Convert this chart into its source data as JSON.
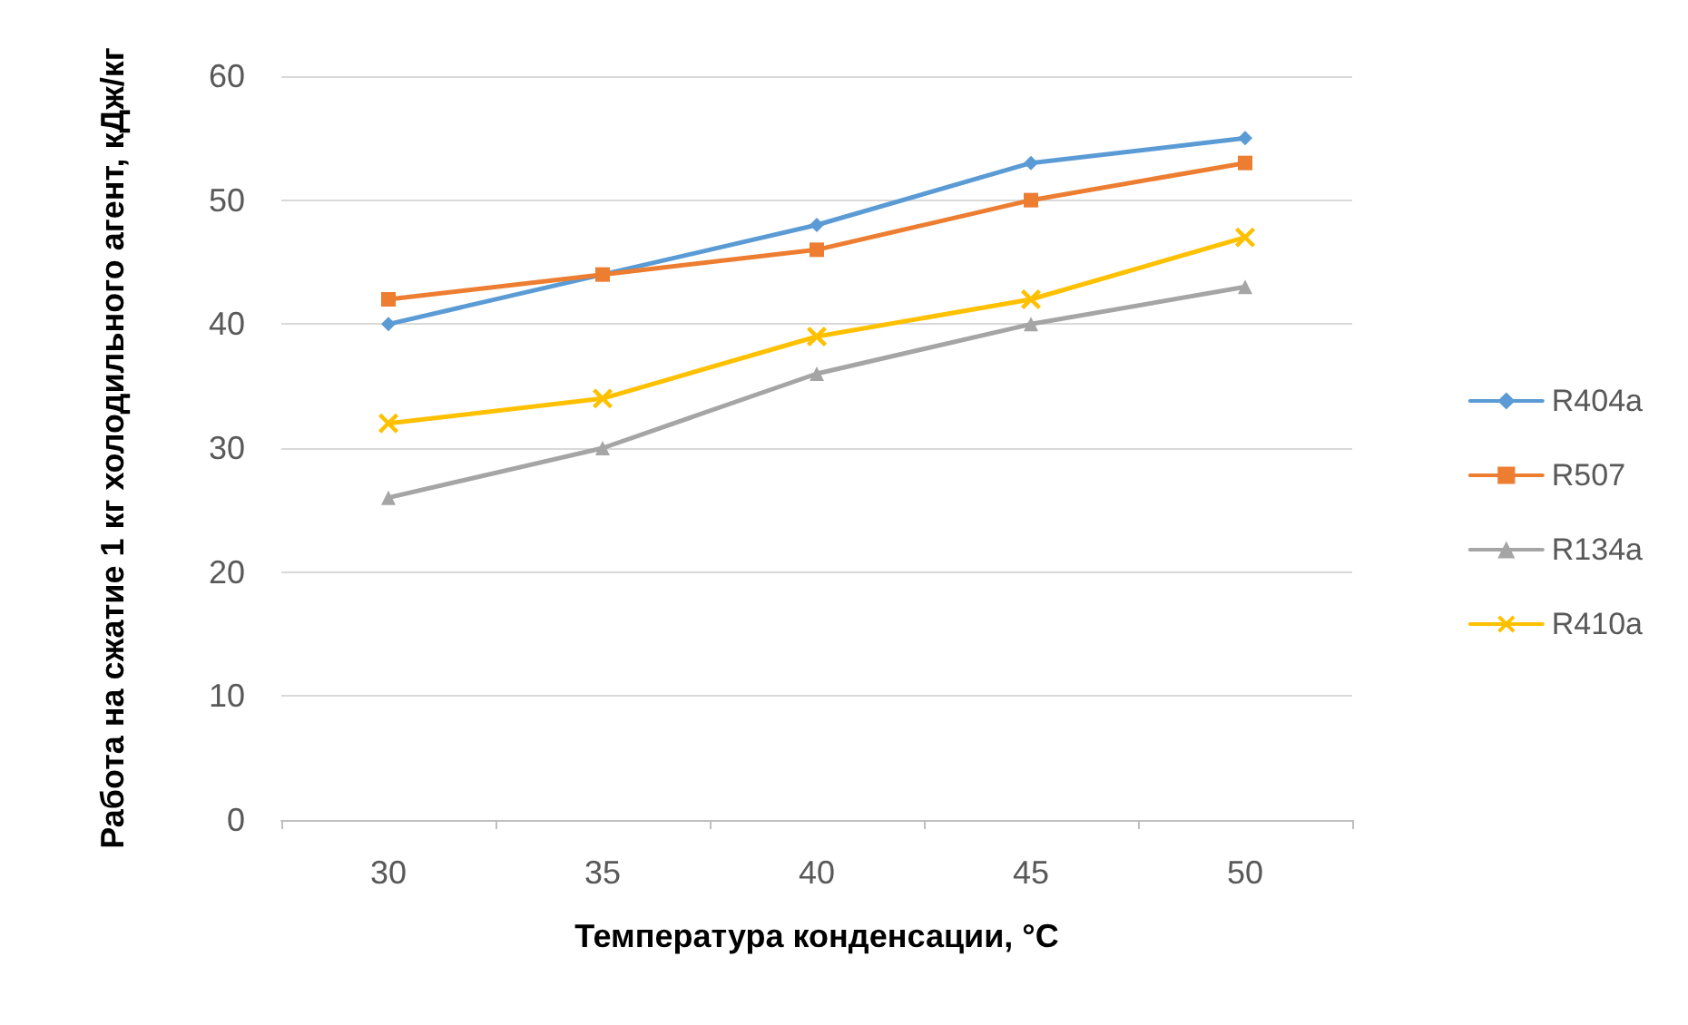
{
  "chart_data": {
    "type": "line",
    "xlabel": "Температура конденсации, °C",
    "ylabel": "Работа на сжатие 1 кг холодильного агент, кДж/кг",
    "categories": [
      "30",
      "35",
      "40",
      "45",
      "50"
    ],
    "series": [
      {
        "name": "R404a",
        "color": "#5b9bd5",
        "marker": "diamond",
        "values": [
          40,
          44,
          48,
          53,
          55
        ]
      },
      {
        "name": "R507",
        "color": "#ed7d31",
        "marker": "square",
        "values": [
          42,
          44,
          46,
          50,
          53
        ]
      },
      {
        "name": "R134a",
        "color": "#a5a5a5",
        "marker": "triangle",
        "values": [
          26,
          30,
          36,
          40,
          43
        ]
      },
      {
        "name": "R410a",
        "color": "#ffc000",
        "marker": "cross",
        "values": [
          32,
          34,
          39,
          42,
          47
        ]
      }
    ],
    "ylim": [
      0,
      60
    ],
    "yticks": [
      0,
      10,
      20,
      30,
      40,
      50,
      60
    ],
    "grid": "y",
    "legend": "right"
  }
}
